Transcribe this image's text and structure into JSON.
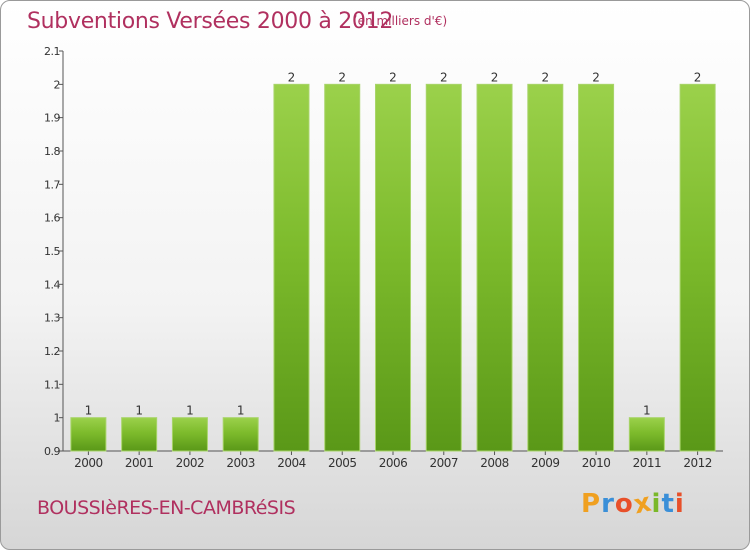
{
  "header": {
    "title": "Subventions Versées 2000 à 2012",
    "unit": "(en milliers d'€)"
  },
  "footer": {
    "commune": "BOUSSIèRES-EN-CAMBRéSIS",
    "logo_letters": [
      "P",
      "r",
      "o",
      "x",
      "i",
      "t",
      "i"
    ],
    "logo_colors": [
      "#f0a020",
      "#3a8fd8",
      "#e8502a",
      "#f0a020",
      "#7ab829",
      "#3a8fd8",
      "#e8502a"
    ]
  },
  "chart_data": {
    "type": "bar",
    "categories": [
      "2000",
      "2001",
      "2002",
      "2003",
      "2004",
      "2005",
      "2006",
      "2007",
      "2008",
      "2009",
      "2010",
      "2011",
      "2012"
    ],
    "values": [
      1,
      1,
      1,
      1,
      2,
      2,
      2,
      2,
      2,
      2,
      2,
      1,
      2
    ],
    "data_labels": [
      "1",
      "1",
      "1",
      "1",
      "2",
      "2",
      "2",
      "2",
      "2",
      "2",
      "2",
      "1",
      "2"
    ],
    "title": "Subventions Versées 2000 à 2012",
    "xlabel": "",
    "ylabel": "",
    "ylim": [
      0.9,
      2.1
    ],
    "yticks": [
      0.9,
      1,
      1.1,
      1.2,
      1.3,
      1.4,
      1.5,
      1.6,
      1.7,
      1.8,
      1.9,
      2,
      2.1
    ],
    "ytick_labels": [
      "0.9",
      "1",
      "1.1",
      "1.2",
      "1.3",
      "1.4",
      "1.5",
      "1.6",
      "1.7",
      "1.8",
      "1.9",
      "2",
      "2.1"
    ],
    "grid": false,
    "bar_color": "#7dbb2c",
    "bar_color_light": "#9bd14b",
    "bar_color_dark": "#5a9818"
  }
}
